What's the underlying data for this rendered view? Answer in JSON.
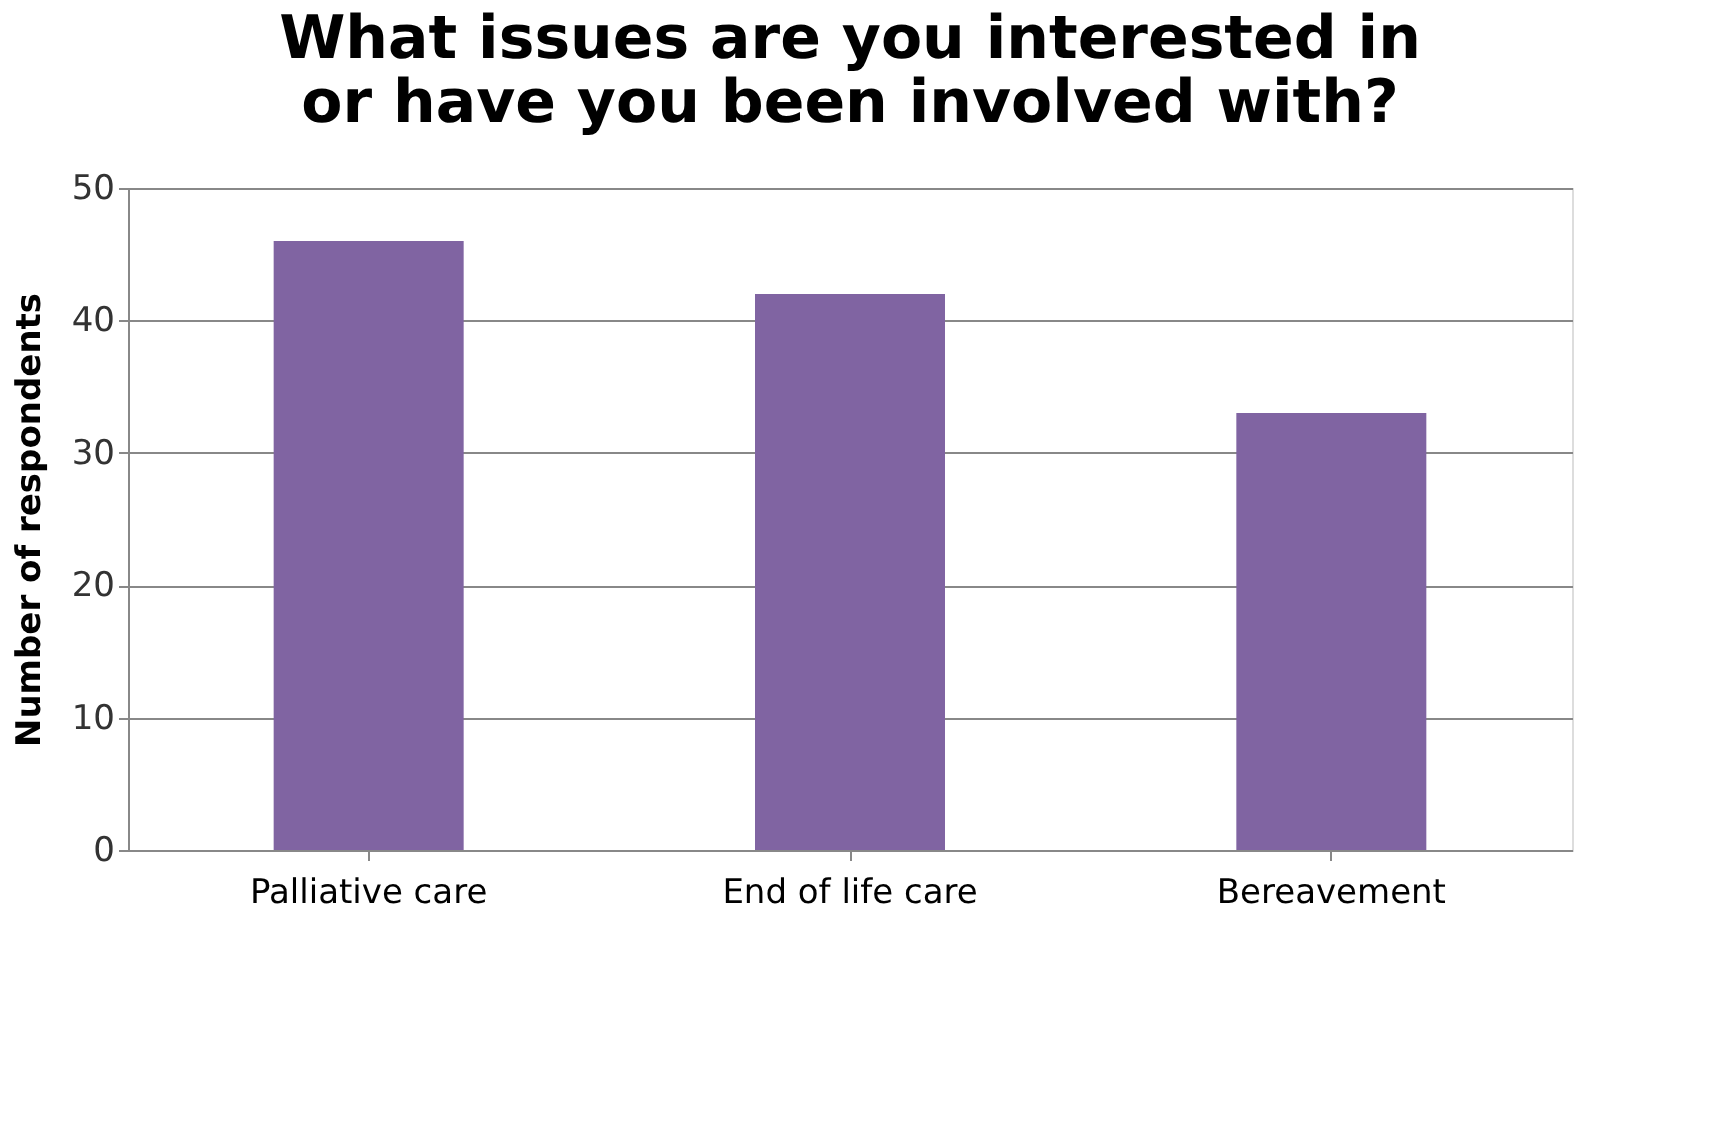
{
  "chart_data": {
    "type": "bar",
    "title": "What issues are you interested in or have you been involved with?",
    "ylabel": "Number of respondents",
    "categories": [
      "Palliative care",
      "End of life care",
      "Bereavement"
    ],
    "values": [
      46,
      42,
      33
    ],
    "color": "#8064a2",
    "ylim": [
      0,
      50
    ],
    "yticks": [
      0,
      10,
      20,
      30,
      40,
      50
    ],
    "grid": "y"
  }
}
